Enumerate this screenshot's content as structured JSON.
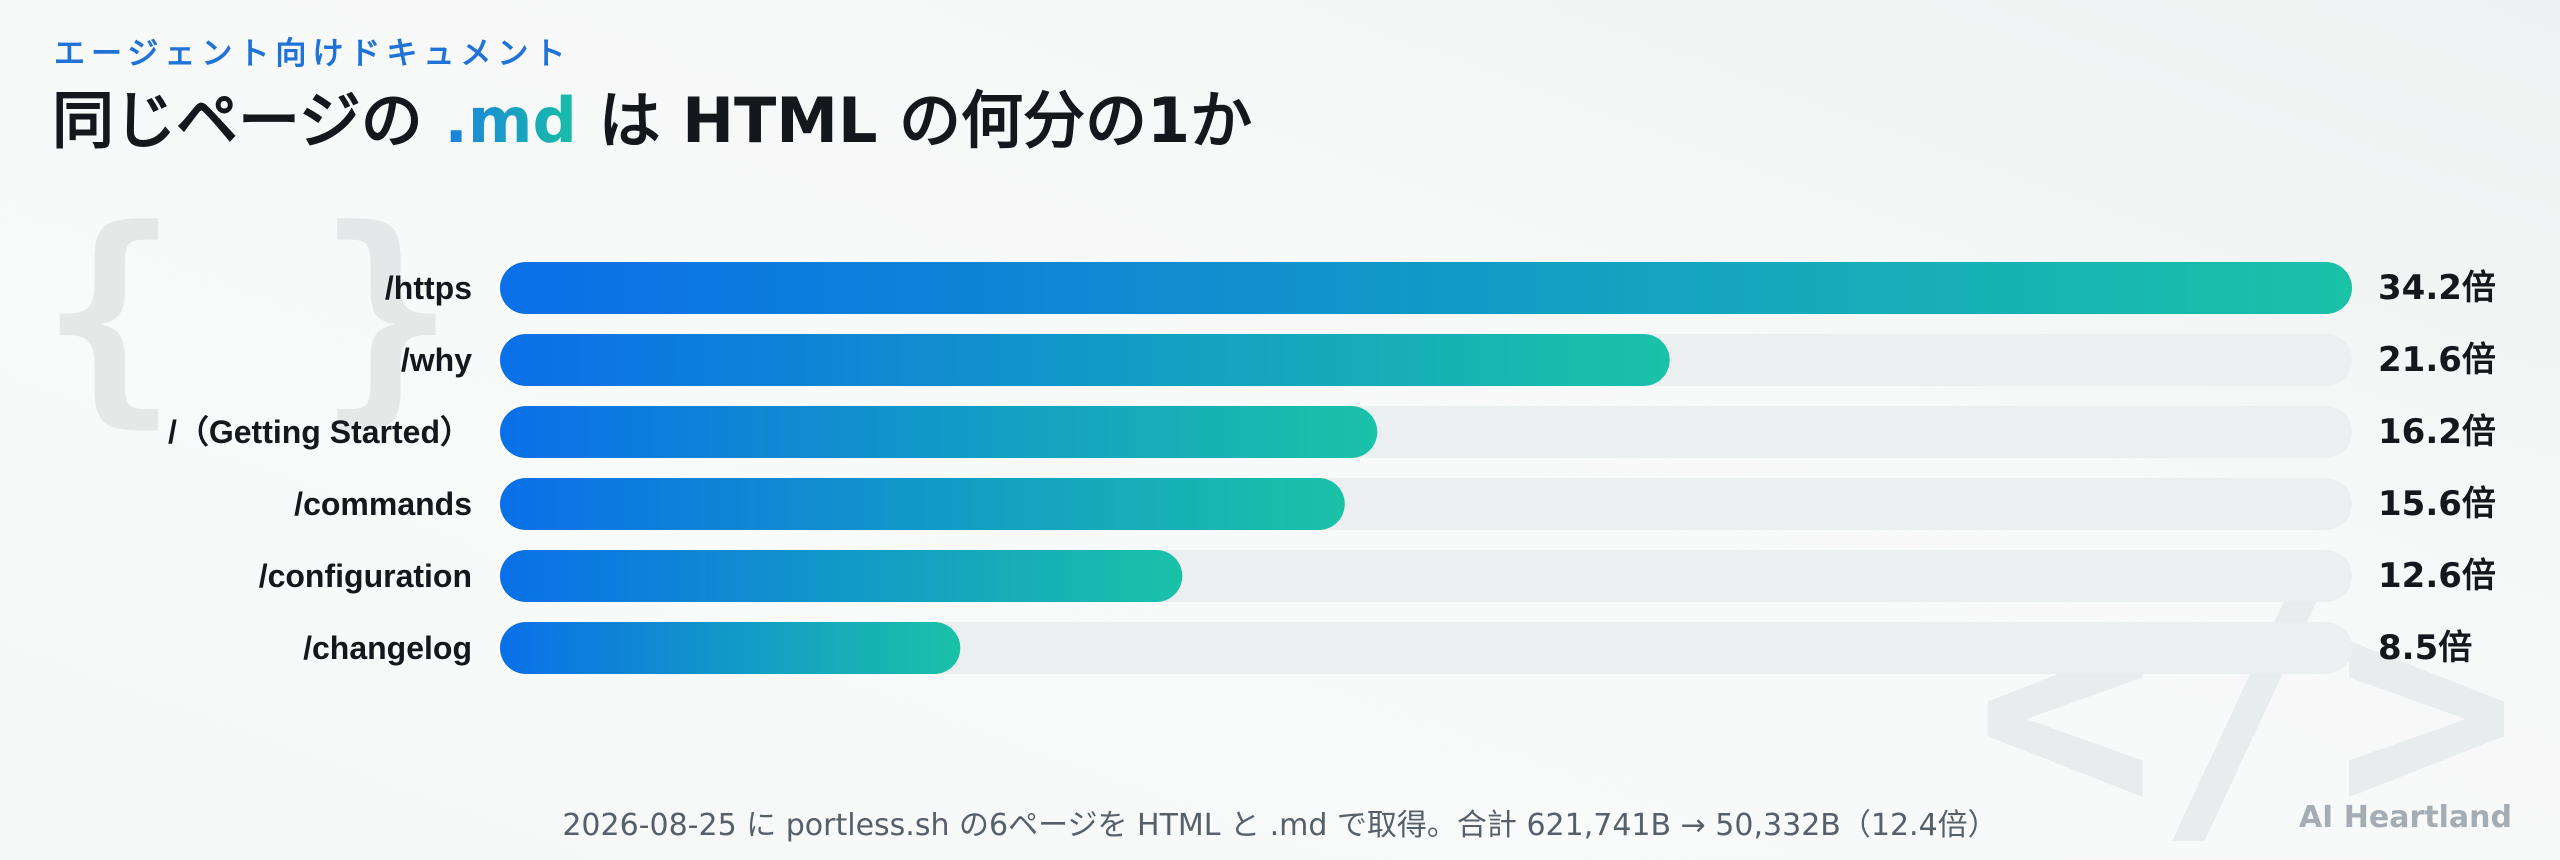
{
  "header": {
    "kicker": "エージェント向けドキュメント",
    "title_prefix": "同じページの ",
    "title_accent": ".md",
    "title_suffix": " は HTML の何分の1か"
  },
  "decor": {
    "braces": "{ }",
    "tag": "</>"
  },
  "colors": {
    "bar_start": "#0a6fe8",
    "bar_end": "#1ac2a8",
    "track": "#eceff0",
    "accent": "#1f73d8"
  },
  "chart_data": {
    "type": "bar",
    "orientation": "horizontal",
    "categories": [
      "/https",
      "/why",
      "/（Getting Started）",
      "/commands",
      "/configuration",
      "/changelog"
    ],
    "values": [
      34.2,
      21.6,
      16.2,
      15.6,
      12.6,
      8.5
    ],
    "value_labels": [
      "34.2倍",
      "21.6倍",
      "16.2倍",
      "15.6倍",
      "12.6倍",
      "8.5倍"
    ],
    "xlim": [
      0,
      34.2
    ],
    "title": "同じページの .md は HTML の何分の1か",
    "xlabel": "",
    "ylabel": "",
    "grid": false,
    "legend": "none"
  },
  "footer": {
    "note": "2026-08-25 に portless.sh の6ページを HTML と .md で取得。合計 621,741B → 50,332B（12.4倍）",
    "brand": "AI Heartland"
  }
}
